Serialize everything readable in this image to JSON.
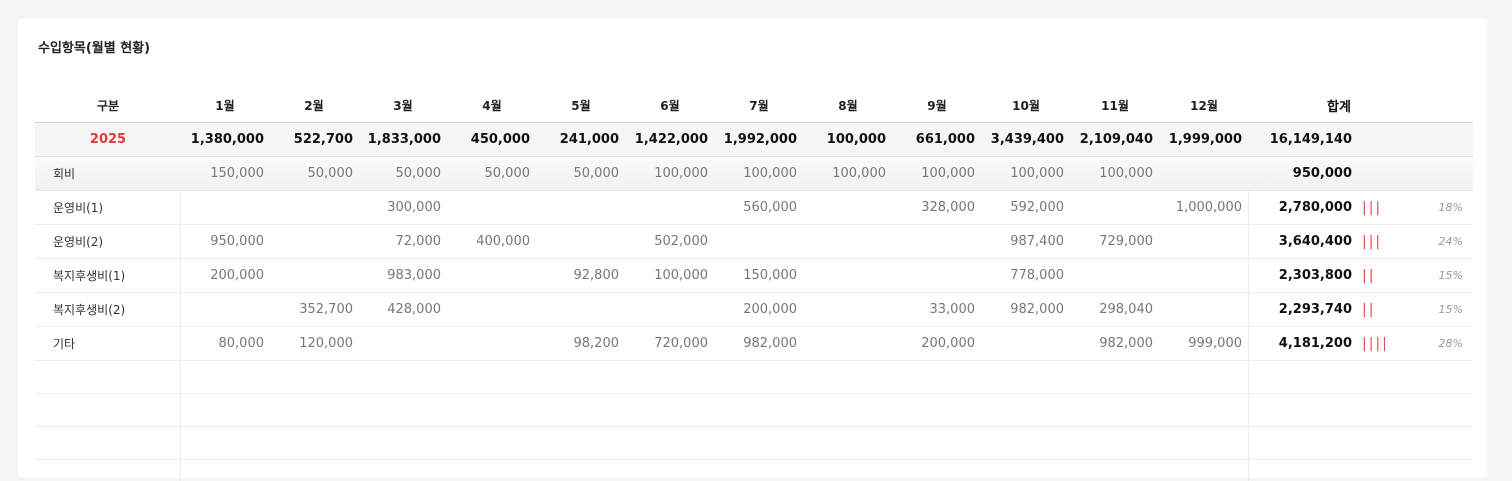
{
  "card": {
    "title": "수입항목(월별 현황)"
  },
  "header": {
    "label": "구분",
    "months": [
      "1월",
      "2월",
      "3월",
      "4월",
      "5월",
      "6월",
      "7월",
      "8월",
      "9월",
      "10월",
      "11월",
      "12월"
    ],
    "total": "합계"
  },
  "year_row": {
    "label": "2025",
    "values": [
      "1,380,000",
      "522,700",
      "1,833,000",
      "450,000",
      "241,000",
      "1,422,000",
      "1,992,000",
      "100,000",
      "661,000",
      "3,439,400",
      "2,109,040",
      "1,999,000"
    ],
    "total": "16,149,140"
  },
  "rows": [
    {
      "label": "회비",
      "values": [
        "150,000",
        "50,000",
        "50,000",
        "50,000",
        "50,000",
        "100,000",
        "100,000",
        "100,000",
        "100,000",
        "100,000",
        "100,000",
        ""
      ],
      "total": "950,000",
      "bars": "",
      "pct": ""
    },
    {
      "label": "운영비(1)",
      "values": [
        "",
        "",
        "300,000",
        "",
        "",
        "",
        "560,000",
        "",
        "328,000",
        "592,000",
        "",
        "1,000,000"
      ],
      "total": "2,780,000",
      "bars": "|||",
      "pct": "18%"
    },
    {
      "label": "운영비(2)",
      "values": [
        "950,000",
        "",
        "72,000",
        "400,000",
        "",
        "502,000",
        "",
        "",
        "",
        "987,400",
        "729,000",
        ""
      ],
      "total": "3,640,400",
      "bars": "|||",
      "pct": "24%"
    },
    {
      "label": "복지후생비(1)",
      "values": [
        "200,000",
        "",
        "983,000",
        "",
        "92,800",
        "100,000",
        "150,000",
        "",
        "",
        "778,000",
        "",
        ""
      ],
      "total": "2,303,800",
      "bars": "||",
      "pct": "15%"
    },
    {
      "label": "복지후생비(2)",
      "values": [
        "",
        "352,700",
        "428,000",
        "",
        "",
        "",
        "200,000",
        "",
        "33,000",
        "982,000",
        "298,040",
        ""
      ],
      "total": "2,293,740",
      "bars": "||",
      "pct": "15%"
    },
    {
      "label": "기타",
      "values": [
        "80,000",
        "120,000",
        "",
        "",
        "98,200",
        "720,000",
        "982,000",
        "",
        "200,000",
        "",
        "982,000",
        "999,000"
      ],
      "total": "4,181,200",
      "bars": "||||",
      "pct": "28%"
    }
  ],
  "bar_color": "#e24c4c",
  "year_color": "#e03a3a"
}
